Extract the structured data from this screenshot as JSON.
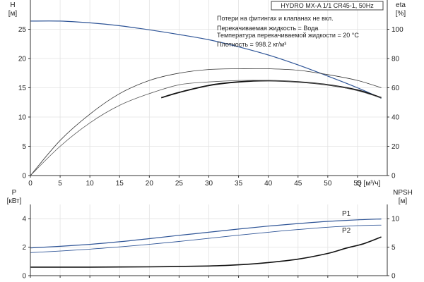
{
  "header": {
    "title": "HYDRO MX-A 1/1 CR45-1, 50Hz",
    "notes": [
      "Потери на фитингах и клапанах не вкл.",
      "Перекачиваемая жидкость = Вода",
      "Температура перекачиваемой жидкости = 20 °C",
      "Плотность = 998.2 кг/м³"
    ]
  },
  "chart_data": [
    {
      "type": "line",
      "name": "upper",
      "xlabel": "Q [м³/ч]",
      "ylabel_left": "H\n[м]",
      "ylabel_right": "eta\n[%]",
      "xlim": [
        0,
        60
      ],
      "ylim_left": [
        0,
        30
      ],
      "ylim_right": [
        0,
        120
      ],
      "x_ticks": [
        0,
        5,
        10,
        15,
        20,
        25,
        30,
        35,
        40,
        45,
        50,
        55
      ],
      "y_ticks_left": [
        0,
        5,
        10,
        15,
        20,
        25
      ],
      "y_ticks_right": [
        0,
        20,
        40,
        60,
        80,
        100
      ],
      "grid": true,
      "series": [
        {
          "axis": "left",
          "color": "#2f5597",
          "width": 1.2,
          "x": [
            0,
            5,
            10,
            15,
            20,
            25,
            30,
            35,
            40,
            45,
            50,
            55,
            59
          ],
          "y": [
            26.4,
            26.4,
            26.1,
            25.6,
            24.9,
            24.1,
            23.2,
            22.0,
            20.6,
            18.9,
            17.0,
            15.0,
            13.2
          ]
        },
        {
          "axis": "left",
          "color": "#111111",
          "width": 1.8,
          "x": [
            22,
            25,
            30,
            35,
            40,
            45,
            50,
            55,
            59
          ],
          "y": [
            13.3,
            14.2,
            15.4,
            16.0,
            16.2,
            16.0,
            15.5,
            14.6,
            13.3
          ]
        },
        {
          "axis": "right",
          "color": "#333333",
          "width": 0.8,
          "x": [
            0,
            5,
            10,
            15,
            20,
            25,
            30,
            35,
            40,
            45,
            50,
            55,
            59
          ],
          "y": [
            0,
            24,
            42,
            56,
            65,
            70,
            72.5,
            73,
            73,
            72,
            69,
            65,
            60
          ]
        },
        {
          "axis": "right",
          "color": "#555555",
          "width": 0.8,
          "x": [
            0,
            5,
            10,
            15,
            20,
            25,
            30,
            35,
            40,
            45,
            50,
            55,
            59
          ],
          "y": [
            0,
            20,
            36,
            48,
            56,
            62,
            64,
            65,
            65,
            64,
            62,
            58,
            53
          ]
        }
      ]
    },
    {
      "type": "line",
      "name": "lower",
      "ylabel_left": "P\n[кВт]",
      "ylabel_right": "NPSH\n[м]",
      "xlim": [
        0,
        60
      ],
      "ylim_left": [
        0,
        5
      ],
      "ylim_right": [
        0,
        12.5
      ],
      "y_ticks_left": [
        0,
        2,
        4
      ],
      "y_ticks_right": [
        0,
        5,
        10
      ],
      "grid": true,
      "series": [
        {
          "name": "P1",
          "axis": "left",
          "color": "#2f5597",
          "width": 1.2,
          "x": [
            0,
            5,
            10,
            15,
            20,
            25,
            30,
            35,
            40,
            45,
            50,
            55,
            59
          ],
          "y": [
            1.95,
            2.06,
            2.2,
            2.38,
            2.6,
            2.83,
            3.05,
            3.27,
            3.48,
            3.66,
            3.81,
            3.92,
            3.98
          ]
        },
        {
          "name": "P2",
          "axis": "left",
          "color": "#2f5597",
          "width": 0.9,
          "x": [
            0,
            5,
            10,
            15,
            20,
            25,
            30,
            35,
            40,
            45,
            50,
            55,
            59
          ],
          "y": [
            1.62,
            1.73,
            1.86,
            2.02,
            2.2,
            2.4,
            2.62,
            2.84,
            3.05,
            3.24,
            3.4,
            3.51,
            3.55
          ]
        },
        {
          "axis": "right",
          "color": "#111111",
          "width": 1.6,
          "x": [
            0,
            10,
            20,
            30,
            35,
            40,
            45,
            50,
            53,
            56,
            59
          ],
          "y": [
            1.5,
            1.5,
            1.55,
            1.7,
            1.9,
            2.3,
            2.9,
            3.9,
            4.8,
            5.6,
            6.8
          ]
        }
      ]
    }
  ]
}
